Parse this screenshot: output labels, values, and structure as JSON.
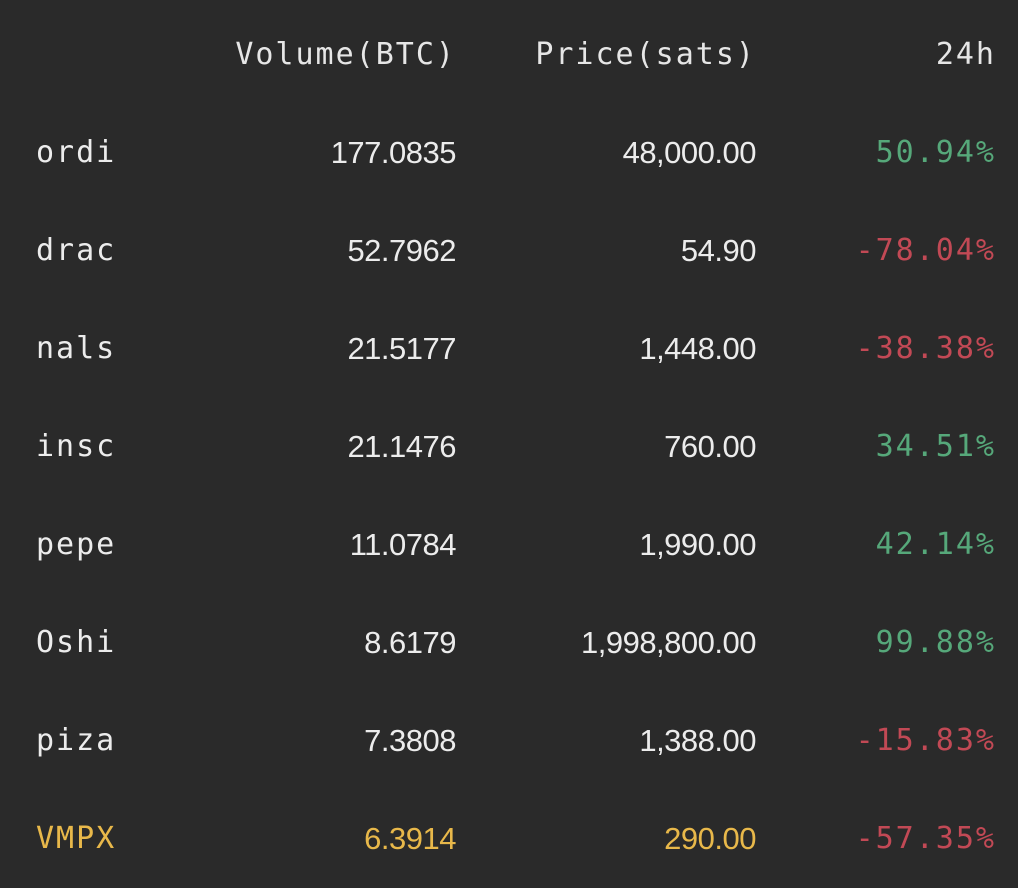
{
  "header": {
    "volume": "Volume(BTC)",
    "price": "Price(sats)",
    "change": "24h"
  },
  "rows": [
    {
      "ticker": "ordi",
      "volume": "177.0835",
      "price": "48,000.00",
      "change": "50.94%",
      "direction": "up"
    },
    {
      "ticker": "drac",
      "volume": "52.7962",
      "price": "54.90",
      "change": "-78.04%",
      "direction": "down"
    },
    {
      "ticker": "nals",
      "volume": "21.5177",
      "price": "1,448.00",
      "change": "-38.38%",
      "direction": "down"
    },
    {
      "ticker": "insc",
      "volume": "21.1476",
      "price": "760.00",
      "change": "34.51%",
      "direction": "up"
    },
    {
      "ticker": "pepe",
      "volume": "11.0784",
      "price": "1,990.00",
      "change": "42.14%",
      "direction": "up"
    },
    {
      "ticker": "Oshi",
      "volume": "8.6179",
      "price": "1,998,800.00",
      "change": "99.88%",
      "direction": "up"
    },
    {
      "ticker": "piza",
      "volume": "7.3808",
      "price": "1,388.00",
      "change": "-15.83%",
      "direction": "down"
    },
    {
      "ticker": "VMPX",
      "volume": "6.3914",
      "price": "290.00",
      "change": "-57.35%",
      "direction": "down",
      "highlighted": true
    }
  ],
  "colors": {
    "background": "#2a2a2a",
    "text": "#ececec",
    "positive": "#56a87a",
    "negative": "#c24955",
    "highlight": "#e8b84a"
  }
}
